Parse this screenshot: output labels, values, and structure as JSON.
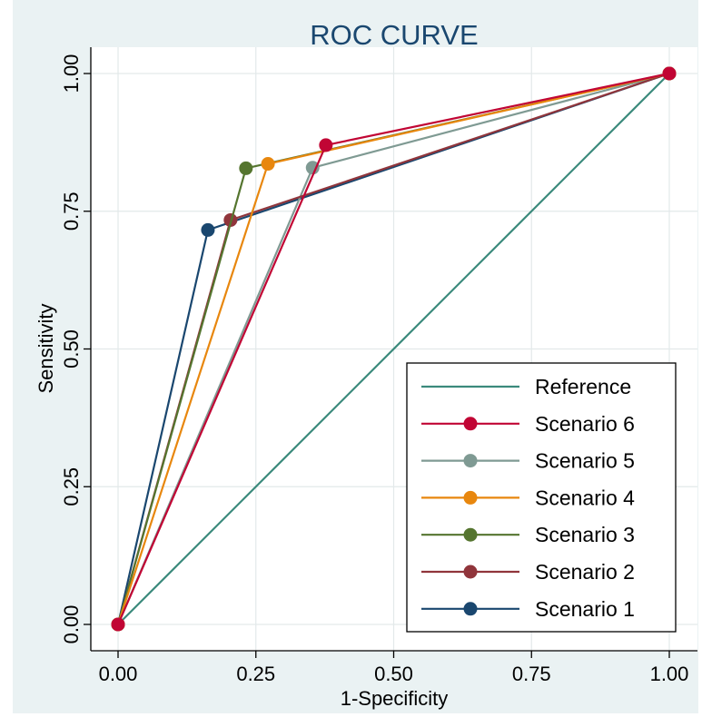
{
  "chart_data": {
    "type": "line",
    "title": "ROC CURVE",
    "xlabel": "1-Specificity",
    "ylabel": "Sensitivity",
    "xlim": [
      0,
      1
    ],
    "ylim": [
      0,
      1
    ],
    "xticks": [
      "0.00",
      "0.25",
      "0.50",
      "0.75",
      "1.00"
    ],
    "yticks": [
      "0.00",
      "0.25",
      "0.50",
      "0.75",
      "1.00"
    ],
    "grid": true,
    "legend_position": "bottom-right",
    "series": [
      {
        "name": "Reference",
        "color": "#3b8a7c",
        "markers": false,
        "x": [
          0,
          1
        ],
        "y": [
          0,
          1
        ]
      },
      {
        "name": "Scenario 6",
        "color": "#c10534",
        "markers": true,
        "x": [
          0,
          0.377,
          1
        ],
        "y": [
          0,
          0.87,
          1
        ]
      },
      {
        "name": "Scenario 5",
        "color": "#7f9a93",
        "markers": true,
        "x": [
          0,
          0.353,
          1
        ],
        "y": [
          0,
          0.829,
          1
        ]
      },
      {
        "name": "Scenario 4",
        "color": "#e8870e",
        "markers": true,
        "x": [
          0,
          0.272,
          1
        ],
        "y": [
          0,
          0.836,
          1
        ]
      },
      {
        "name": "Scenario 3",
        "color": "#55752f",
        "markers": true,
        "x": [
          0,
          0.232,
          1
        ],
        "y": [
          0,
          0.828,
          1
        ]
      },
      {
        "name": "Scenario 2",
        "color": "#90353b",
        "markers": true,
        "x": [
          0,
          0.204,
          1
        ],
        "y": [
          0,
          0.734,
          1
        ]
      },
      {
        "name": "Scenario 1",
        "color": "#1a476f",
        "markers": true,
        "x": [
          0,
          0.163,
          1
        ],
        "y": [
          0,
          0.716,
          1
        ]
      }
    ],
    "draw_order": [
      "Reference",
      "Scenario 1",
      "Scenario 5",
      "Scenario 2",
      "Scenario 3",
      "Scenario 4",
      "Scenario 6"
    ]
  }
}
